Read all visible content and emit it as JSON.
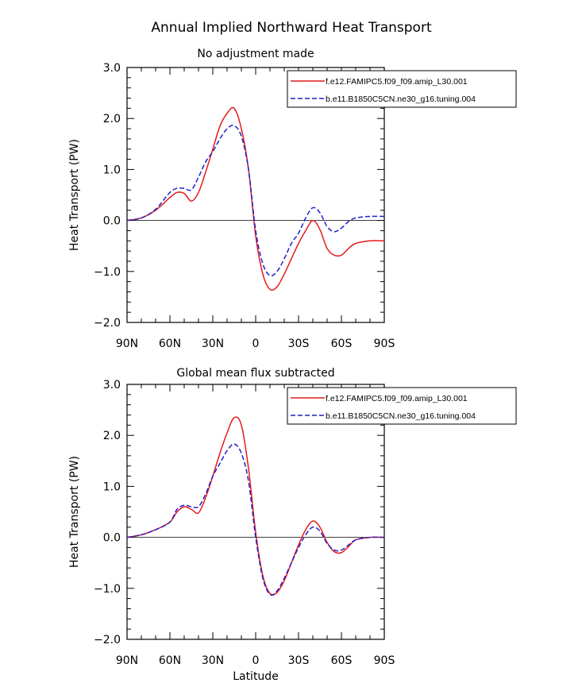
{
  "figure_title": "Annual Implied Northward Heat Transport",
  "colors": {
    "series1": "#e41a1c",
    "series2": "#1f1fcc",
    "axis": "#000000"
  },
  "chart_data": [
    {
      "type": "line",
      "title": "No adjustment made",
      "xlabel": "",
      "ylabel": "Heat Transport (PW)",
      "xlim": [
        -90,
        90
      ],
      "ylim": [
        -2,
        3
      ],
      "x_ticks": [
        -90,
        -60,
        -30,
        0,
        30,
        60,
        90
      ],
      "x_tick_labels": [
        "90N",
        "60N",
        "30N",
        "0",
        "30S",
        "60S",
        "90S"
      ],
      "y_ticks": [
        3,
        2,
        1,
        0,
        -1,
        -2
      ],
      "y_tick_labels": [
        "3.0",
        "2.0",
        "1.0",
        "0.0",
        "−1.0",
        "−2.0"
      ],
      "x": [
        -90,
        -80,
        -70,
        -60,
        -55,
        -50,
        -45,
        -40,
        -35,
        -30,
        -25,
        -20,
        -15,
        -10,
        -5,
        0,
        5,
        10,
        15,
        20,
        25,
        30,
        35,
        40,
        45,
        50,
        55,
        60,
        65,
        70,
        80,
        90
      ],
      "series": [
        {
          "name": "f.e12.FAMIPC5.f09_f09.amip_L30.001",
          "style": "solid",
          "values": [
            0.0,
            0.05,
            0.2,
            0.45,
            0.55,
            0.53,
            0.38,
            0.55,
            0.95,
            1.4,
            1.85,
            2.1,
            2.2,
            1.8,
            1.0,
            -0.3,
            -1.05,
            -1.35,
            -1.3,
            -1.05,
            -0.75,
            -0.45,
            -0.2,
            0.0,
            -0.18,
            -0.55,
            -0.68,
            -0.68,
            -0.55,
            -0.45,
            -0.4,
            -0.4
          ]
        },
        {
          "name": "b.e11.B1850C5CN.ne30_g16.tuning.004",
          "style": "dashed",
          "values": [
            0.0,
            0.05,
            0.22,
            0.55,
            0.63,
            0.63,
            0.6,
            0.85,
            1.15,
            1.35,
            1.6,
            1.8,
            1.86,
            1.65,
            1.0,
            -0.2,
            -0.85,
            -1.08,
            -1.0,
            -0.75,
            -0.45,
            -0.25,
            0.05,
            0.25,
            0.15,
            -0.12,
            -0.22,
            -0.15,
            -0.02,
            0.05,
            0.08,
            0.08
          ]
        }
      ]
    },
    {
      "type": "line",
      "title": "Global mean flux subtracted",
      "xlabel": "Latitude",
      "ylabel": "Heat Transport (PW)",
      "xlim": [
        -90,
        90
      ],
      "ylim": [
        -2,
        3
      ],
      "x_ticks": [
        -90,
        -60,
        -30,
        0,
        30,
        60,
        90
      ],
      "x_tick_labels": [
        "90N",
        "60N",
        "30N",
        "0",
        "30S",
        "60S",
        "90S"
      ],
      "y_ticks": [
        3,
        2,
        1,
        0,
        -1,
        -2
      ],
      "y_tick_labels": [
        "3.0",
        "2.0",
        "1.0",
        "0.0",
        "−1.0",
        "−2.0"
      ],
      "x": [
        -90,
        -80,
        -70,
        -60,
        -55,
        -50,
        -45,
        -40,
        -35,
        -30,
        -25,
        -20,
        -15,
        -10,
        -5,
        0,
        5,
        10,
        15,
        20,
        25,
        30,
        35,
        40,
        45,
        50,
        55,
        60,
        65,
        70,
        80,
        90
      ],
      "series": [
        {
          "name": "f.e12.FAMIPC5.f09_f09.amip_L30.001",
          "style": "solid",
          "values": [
            0.0,
            0.05,
            0.15,
            0.3,
            0.5,
            0.6,
            0.55,
            0.48,
            0.78,
            1.2,
            1.65,
            2.05,
            2.35,
            2.2,
            1.35,
            0.1,
            -0.75,
            -1.1,
            -1.08,
            -0.85,
            -0.5,
            -0.15,
            0.15,
            0.32,
            0.2,
            -0.1,
            -0.28,
            -0.3,
            -0.18,
            -0.05,
            0.0,
            0.0
          ]
        },
        {
          "name": "b.e11.B1850C5CN.ne30_g16.tuning.004",
          "style": "dashed",
          "values": [
            0.0,
            0.05,
            0.15,
            0.3,
            0.55,
            0.63,
            0.6,
            0.6,
            0.85,
            1.2,
            1.45,
            1.7,
            1.83,
            1.65,
            1.1,
            0.0,
            -0.8,
            -1.12,
            -1.05,
            -0.8,
            -0.5,
            -0.2,
            0.05,
            0.2,
            0.12,
            -0.12,
            -0.25,
            -0.25,
            -0.15,
            -0.05,
            0.0,
            0.0
          ]
        }
      ]
    }
  ]
}
